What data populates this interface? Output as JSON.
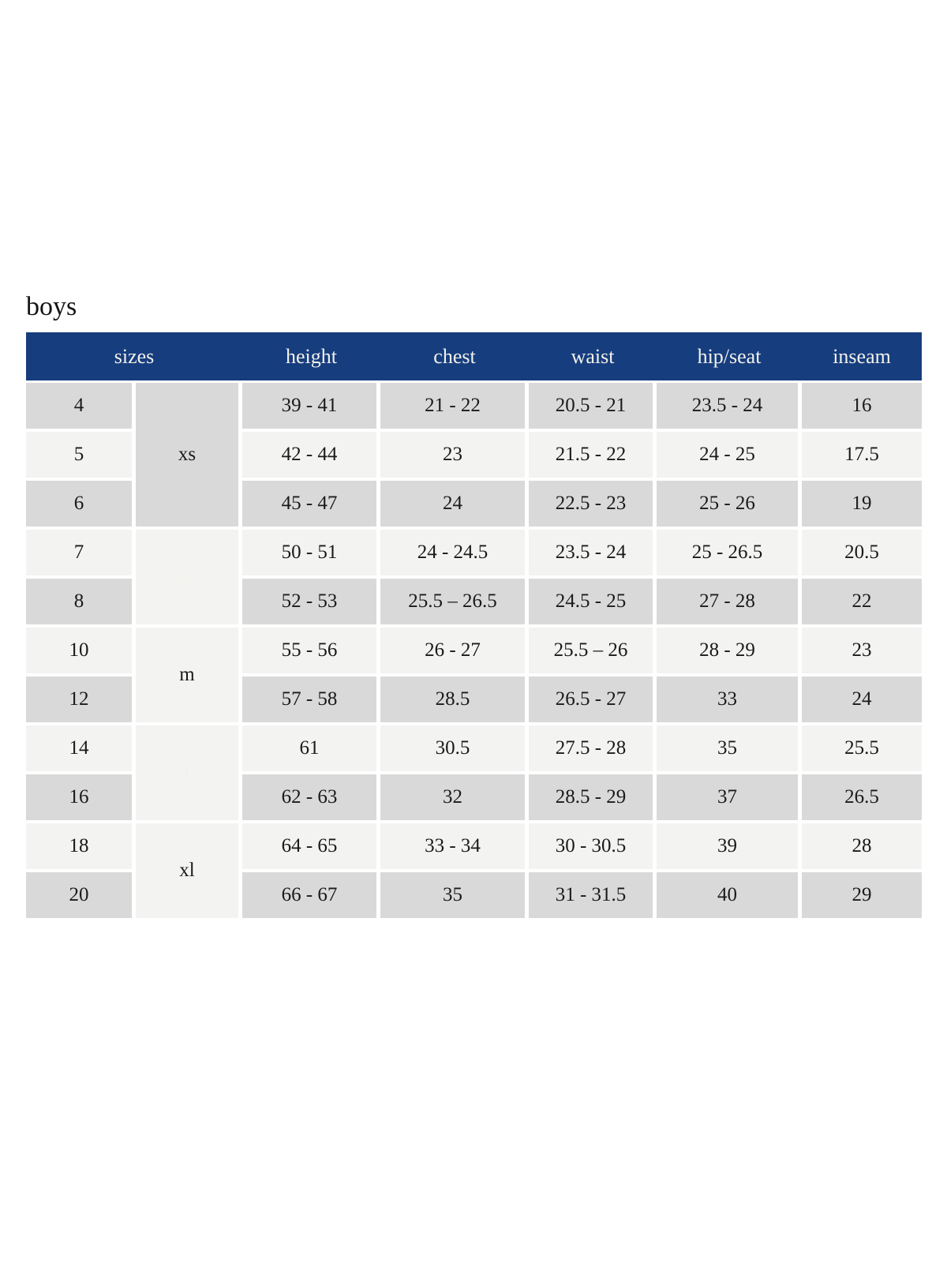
{
  "page_title": "boys",
  "colors": {
    "header_navy": "#163d7e",
    "group_light_blue": "#c9d6e3",
    "row_gray": "#d9d9d9",
    "row_light": "#f3f3f2",
    "header_text": "#f2f1ea",
    "body_text": "#1a1a1a"
  },
  "chart_data": {
    "type": "table",
    "title": "boys",
    "headers": {
      "sizes": "sizes",
      "height": "height",
      "chest": "chest",
      "waist": "waist",
      "hip_seat": "hip/seat",
      "inseam": "inseam"
    },
    "groups": [
      {
        "label": "xs",
        "sizes": [
          "4",
          "5",
          "6"
        ],
        "style": "light"
      },
      {
        "label": "s",
        "sizes": [
          "7",
          "8"
        ],
        "style": "navy"
      },
      {
        "label": "m",
        "sizes": [
          "10",
          "12"
        ],
        "style": "light"
      },
      {
        "label": "l",
        "sizes": [
          "14",
          "16"
        ],
        "style": "navy"
      },
      {
        "label": "xl",
        "sizes": [
          "18",
          "20"
        ],
        "style": "light"
      }
    ],
    "rows": [
      {
        "size": "4",
        "group": "xs",
        "height": "39 - 41",
        "chest": "21 - 22",
        "waist": "20.5 - 21",
        "hip_seat": "23.5 - 24",
        "inseam": "16"
      },
      {
        "size": "5",
        "group": "xs",
        "height": "42 - 44",
        "chest": "23",
        "waist": "21.5 - 22",
        "hip_seat": "24 - 25",
        "inseam": "17.5"
      },
      {
        "size": "6",
        "group": "xs",
        "height": "45 - 47",
        "chest": "24",
        "waist": "22.5 - 23",
        "hip_seat": "25 - 26",
        "inseam": "19"
      },
      {
        "size": "7",
        "group": "s",
        "height": "50 - 51",
        "chest": "24 - 24.5",
        "waist": "23.5 - 24",
        "hip_seat": "25 - 26.5",
        "inseam": "20.5"
      },
      {
        "size": "8",
        "group": "s",
        "height": "52 - 53",
        "chest": "25.5 – 26.5",
        "waist": "24.5 - 25",
        "hip_seat": "27 - 28",
        "inseam": "22"
      },
      {
        "size": "10",
        "group": "m",
        "height": "55 - 56",
        "chest": "26 - 27",
        "waist": "25.5 – 26",
        "hip_seat": "28 - 29",
        "inseam": "23"
      },
      {
        "size": "12",
        "group": "m",
        "height": "57 - 58",
        "chest": "28.5",
        "waist": "26.5 - 27",
        "hip_seat": "33",
        "inseam": "24"
      },
      {
        "size": "14",
        "group": "l",
        "height": "61",
        "chest": "30.5",
        "waist": "27.5 - 28",
        "hip_seat": "35",
        "inseam": "25.5"
      },
      {
        "size": "16",
        "group": "l",
        "height": "62 - 63",
        "chest": "32",
        "waist": "28.5 - 29",
        "hip_seat": "37",
        "inseam": "26.5"
      },
      {
        "size": "18",
        "group": "xl",
        "height": "64 - 65",
        "chest": "33 - 34",
        "waist": "30 - 30.5",
        "hip_seat": "39",
        "inseam": "28"
      },
      {
        "size": "20",
        "group": "xl",
        "height": "66 - 67",
        "chest": "35",
        "waist": "31 - 31.5",
        "hip_seat": "40",
        "inseam": "29"
      }
    ]
  }
}
